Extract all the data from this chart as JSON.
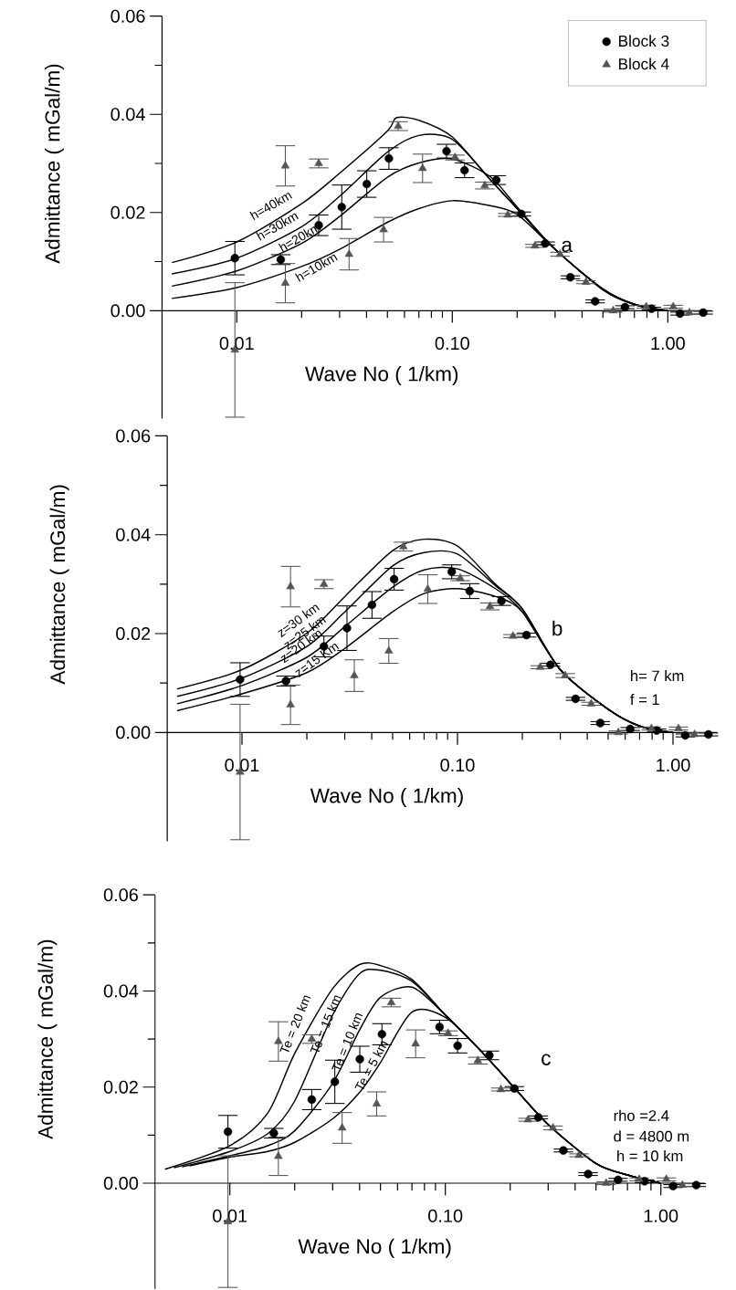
{
  "chart_data": [
    {
      "type": "scatter",
      "xlabel": "Wave No ( 1/km)",
      "ylabel": "Admittance ( mGal/m)",
      "log": "x",
      "legend": "top right",
      "xlim": [
        0.0045,
        1.6
      ],
      "ylim": [
        -0.022,
        0.06
      ],
      "xticks": [
        {
          "value": 0.01,
          "label": "0.01"
        },
        {
          "value": 0.02,
          "label": null
        },
        {
          "value": 0.03,
          "label": null
        },
        {
          "value": 0.04,
          "label": null
        },
        {
          "value": 0.05,
          "label": null
        },
        {
          "value": 0.06,
          "label": null
        },
        {
          "value": 0.07,
          "label": null
        },
        {
          "value": 0.08,
          "label": null
        },
        {
          "value": 0.09,
          "label": null
        },
        {
          "value": 0.1,
          "label": "0.10"
        },
        {
          "value": 0.2,
          "label": null
        },
        {
          "value": 0.3,
          "label": null
        },
        {
          "value": 0.4,
          "label": null
        },
        {
          "value": 0.5,
          "label": null
        },
        {
          "value": 0.6,
          "label": null
        },
        {
          "value": 0.7,
          "label": null
        },
        {
          "value": 0.8,
          "label": null
        },
        {
          "value": 0.9,
          "label": null
        },
        {
          "value": 1,
          "label": "1.00"
        }
      ],
      "yticks": [
        {
          "value": 0,
          "label": "0.00"
        },
        {
          "value": 0.01,
          "label": null
        },
        {
          "value": 0.02,
          "label": "0.02"
        },
        {
          "value": 0.03,
          "label": null
        },
        {
          "value": 0.04,
          "label": "0.04"
        },
        {
          "value": 0.05,
          "label": null
        },
        {
          "value": 0.06,
          "label": "0.06"
        }
      ],
      "annotations": [
        "a",
        "h=40km",
        "h=30km",
        "h=20km",
        "h=10km"
      ],
      "series": [
        {
          "type": "line",
          "marker": "none",
          "color": "#000000",
          "x": [
            0.005,
            0.01,
            0.02,
            0.03,
            0.05,
            0.055,
            0.07,
            0.1,
            0.15,
            0.2,
            0.3,
            0.5,
            0.7,
            1.0
          ],
          "values": [
            0.0098,
            0.014,
            0.0218,
            0.028,
            0.0366,
            0.0393,
            0.0388,
            0.0354,
            0.0267,
            0.0208,
            0.0125,
            0.0044,
            0.0013,
            0.0
          ]
        },
        {
          "type": "line",
          "marker": "none",
          "color": "#000000",
          "x": [
            0.005,
            0.01,
            0.02,
            0.03,
            0.05,
            0.07,
            0.1,
            0.15,
            0.2,
            0.3,
            0.5,
            0.7,
            1.0
          ],
          "values": [
            0.0075,
            0.0107,
            0.0171,
            0.0233,
            0.0323,
            0.0357,
            0.0349,
            0.0267,
            0.0208,
            0.0125,
            0.0044,
            0.0013,
            0.0
          ]
        },
        {
          "type": "line",
          "marker": "none",
          "color": "#000000",
          "x": [
            0.005,
            0.01,
            0.02,
            0.03,
            0.05,
            0.07,
            0.1,
            0.15,
            0.2,
            0.3,
            0.5,
            0.7,
            1.0
          ],
          "values": [
            0.005,
            0.0081,
            0.0137,
            0.0192,
            0.0272,
            0.0301,
            0.0309,
            0.0273,
            0.0211,
            0.0125,
            0.0044,
            0.0013,
            0.0
          ]
        },
        {
          "type": "line",
          "marker": "none",
          "color": "#000000",
          "x": [
            0.005,
            0.01,
            0.02,
            0.03,
            0.05,
            0.07,
            0.1,
            0.15,
            0.2,
            0.3,
            0.5,
            0.7,
            1.0
          ],
          "values": [
            0.0025,
            0.0047,
            0.009,
            0.0125,
            0.018,
            0.0208,
            0.0224,
            0.0214,
            0.0196,
            0.0125,
            0.0042,
            0.0012,
            0.0
          ]
        },
        {
          "name": "Block 3",
          "marker": "circle",
          "color": "#000000",
          "x": [
            0.0098,
            0.016,
            0.024,
            0.0307,
            0.0401,
            0.0508,
            0.094,
            0.114,
            0.16,
            0.209,
            0.27,
            0.353,
            0.46,
            0.633,
            0.84,
            1.14,
            1.46
          ],
          "values": [
            0.0107,
            0.0104,
            0.0174,
            0.0211,
            0.0258,
            0.031,
            0.0325,
            0.0286,
            0.0266,
            0.0197,
            0.0137,
            0.0068,
            0.0019,
            0.0007,
            0.0004,
            -0.0006,
            -0.0004
          ],
          "errors": [
            0.0034,
            0.001,
            0.0021,
            0.0045,
            0.0027,
            0.0022,
            0.0014,
            0.0015,
            0.0009,
            0.0004,
            0.0003,
            0.0003,
            0.0003,
            0.0003,
            0.0003,
            0.0003,
            0.0003
          ]
        },
        {
          "name": "Block 4",
          "marker": "triangle",
          "color": "#555555",
          "x": [
            0.0098,
            0.0168,
            0.0168,
            0.024,
            0.0332,
            0.048,
            0.0561,
            0.0728,
            0.103,
            0.1415,
            0.181,
            0.242,
            0.316,
            0.417,
            0.558,
            0.794,
            1.06,
            1.26
          ],
          "values": [
            -0.008,
            0.0056,
            0.0295,
            0.03,
            0.0115,
            0.0165,
            0.0376,
            0.029,
            0.0312,
            0.0255,
            0.0195,
            0.0132,
            0.0115,
            0.0058,
            0.0,
            0.0008,
            0.0008,
            -0.0004
          ],
          "errors": [
            0.0137,
            0.004,
            0.0041,
            0.0009,
            0.0032,
            0.0025,
            0.0009,
            0.0029,
            0.0005,
            0.0007,
            0.0003,
            0.0003,
            0.0004,
            0.0003,
            0.0003,
            0.0003,
            0.0003,
            0.0003
          ]
        }
      ]
    },
    {
      "type": "scatter",
      "xlabel": "Wave No ( 1/km)",
      "ylabel": "Admittance ( mGal/m)",
      "log": "x",
      "xlim": [
        0.0045,
        1.6
      ],
      "ylim": [
        -0.022,
        0.06
      ],
      "xticks": [
        {
          "value": 0.01,
          "label": "0.01"
        },
        {
          "value": 0.02,
          "label": null
        },
        {
          "value": 0.03,
          "label": null
        },
        {
          "value": 0.04,
          "label": null
        },
        {
          "value": 0.05,
          "label": null
        },
        {
          "value": 0.06,
          "label": null
        },
        {
          "value": 0.07,
          "label": null
        },
        {
          "value": 0.08,
          "label": null
        },
        {
          "value": 0.09,
          "label": null
        },
        {
          "value": 0.1,
          "label": "0.10"
        },
        {
          "value": 0.2,
          "label": null
        },
        {
          "value": 0.3,
          "label": null
        },
        {
          "value": 0.4,
          "label": null
        },
        {
          "value": 0.5,
          "label": null
        },
        {
          "value": 0.6,
          "label": null
        },
        {
          "value": 0.7,
          "label": null
        },
        {
          "value": 0.8,
          "label": null
        },
        {
          "value": 0.9,
          "label": null
        },
        {
          "value": 1,
          "label": "1.00"
        }
      ],
      "yticks": [
        {
          "value": 0,
          "label": "0.00"
        },
        {
          "value": 0.01,
          "label": null
        },
        {
          "value": 0.02,
          "label": "0.02"
        },
        {
          "value": 0.03,
          "label": null
        },
        {
          "value": 0.04,
          "label": "0.04"
        },
        {
          "value": 0.05,
          "label": null
        },
        {
          "value": 0.06,
          "label": "0.06"
        }
      ],
      "annotations": [
        "b",
        "h= 7 km",
        "f = 1",
        "z=30 km",
        "z=25 km",
        "z=20 km",
        "z=15 Km"
      ],
      "series": [
        {
          "type": "line",
          "marker": "none",
          "color": "#000000",
          "x": [
            0.005,
            0.01,
            0.02,
            0.03,
            0.05,
            0.07,
            0.1,
            0.15,
            0.2,
            0.3,
            0.5,
            0.7,
            1.0
          ],
          "values": [
            0.0088,
            0.0127,
            0.0201,
            0.0275,
            0.0368,
            0.0391,
            0.0377,
            0.03,
            0.025,
            0.0127,
            0.0047,
            0.0013,
            0.0
          ]
        },
        {
          "type": "line",
          "marker": "none",
          "color": "#000000",
          "x": [
            0.005,
            0.01,
            0.02,
            0.03,
            0.05,
            0.07,
            0.1,
            0.15,
            0.2,
            0.3,
            0.5,
            0.7,
            1.0
          ],
          "values": [
            0.0073,
            0.011,
            0.0174,
            0.0244,
            0.0337,
            0.0364,
            0.0361,
            0.0297,
            0.025,
            0.0127,
            0.0047,
            0.0013,
            0.0
          ]
        },
        {
          "type": "line",
          "marker": "none",
          "color": "#000000",
          "x": [
            0.005,
            0.01,
            0.02,
            0.03,
            0.05,
            0.07,
            0.1,
            0.15,
            0.2,
            0.3,
            0.5,
            0.7,
            1.0
          ],
          "values": [
            0.0058,
            0.0095,
            0.0152,
            0.0214,
            0.0294,
            0.0329,
            0.0331,
            0.0291,
            0.0244,
            0.0127,
            0.0047,
            0.0013,
            0.0
          ]
        },
        {
          "type": "line",
          "marker": "none",
          "color": "#000000",
          "x": [
            0.005,
            0.01,
            0.02,
            0.03,
            0.05,
            0.07,
            0.1,
            0.15,
            0.2,
            0.3,
            0.5,
            0.7,
            1.0
          ],
          "values": [
            0.0044,
            0.0078,
            0.0121,
            0.017,
            0.0244,
            0.0281,
            0.0291,
            0.0275,
            0.0244,
            0.0127,
            0.0047,
            0.0013,
            0.0
          ]
        },
        {
          "marker": "circle",
          "color": "#000000",
          "x": [
            0.0098,
            0.016,
            0.024,
            0.0307,
            0.0401,
            0.0508,
            0.094,
            0.114,
            0.16,
            0.209,
            0.27,
            0.353,
            0.46,
            0.633,
            0.84,
            1.14,
            1.46
          ],
          "values": [
            0.0107,
            0.0104,
            0.0174,
            0.0211,
            0.0258,
            0.031,
            0.0325,
            0.0286,
            0.0266,
            0.0197,
            0.0137,
            0.0068,
            0.0019,
            0.0007,
            0.0004,
            -0.0006,
            -0.0004
          ],
          "errors": [
            0.0034,
            0.001,
            0.0021,
            0.0045,
            0.0027,
            0.0022,
            0.0014,
            0.0015,
            0.0009,
            0.0004,
            0.0003,
            0.0003,
            0.0003,
            0.0003,
            0.0003,
            0.0003,
            0.0003
          ]
        },
        {
          "marker": "triangle",
          "color": "#555555",
          "x": [
            0.0098,
            0.0168,
            0.0168,
            0.024,
            0.0332,
            0.048,
            0.0561,
            0.0728,
            0.103,
            0.1415,
            0.181,
            0.242,
            0.316,
            0.417,
            0.558,
            0.794,
            1.06,
            1.26
          ],
          "values": [
            -0.008,
            0.0056,
            0.0295,
            0.03,
            0.0115,
            0.0165,
            0.0376,
            0.029,
            0.0312,
            0.0255,
            0.0195,
            0.0132,
            0.0115,
            0.0058,
            0.0,
            0.0008,
            0.0008,
            -0.0004
          ],
          "errors": [
            0.0137,
            0.004,
            0.0041,
            0.0009,
            0.0032,
            0.0025,
            0.0009,
            0.0029,
            0.0005,
            0.0007,
            0.0003,
            0.0003,
            0.0004,
            0.0003,
            0.0003,
            0.0003,
            0.0003,
            0.0003
          ]
        }
      ]
    },
    {
      "type": "scatter",
      "xlabel": "Wave No ( 1/km)",
      "ylabel": "Admittance ( mGal/m)",
      "log": "x",
      "xlim": [
        0.0045,
        1.6
      ],
      "ylim": [
        -0.022,
        0.06
      ],
      "xticks": [
        {
          "value": 0.01,
          "label": "0.01"
        },
        {
          "value": 0.02,
          "label": null
        },
        {
          "value": 0.03,
          "label": null
        },
        {
          "value": 0.04,
          "label": null
        },
        {
          "value": 0.05,
          "label": null
        },
        {
          "value": 0.06,
          "label": null
        },
        {
          "value": 0.07,
          "label": null
        },
        {
          "value": 0.08,
          "label": null
        },
        {
          "value": 0.09,
          "label": null
        },
        {
          "value": 0.1,
          "label": "0.10"
        },
        {
          "value": 0.2,
          "label": null
        },
        {
          "value": 0.3,
          "label": null
        },
        {
          "value": 0.4,
          "label": null
        },
        {
          "value": 0.5,
          "label": null
        },
        {
          "value": 0.6,
          "label": null
        },
        {
          "value": 0.7,
          "label": null
        },
        {
          "value": 0.8,
          "label": null
        },
        {
          "value": 0.9,
          "label": null
        },
        {
          "value": 1,
          "label": "1.00"
        }
      ],
      "yticks": [
        {
          "value": 0,
          "label": "0.00"
        },
        {
          "value": 0.01,
          "label": null
        },
        {
          "value": 0.02,
          "label": "0.02"
        },
        {
          "value": 0.03,
          "label": null
        },
        {
          "value": 0.04,
          "label": "0.04"
        },
        {
          "value": 0.05,
          "label": null
        },
        {
          "value": 0.06,
          "label": "0.06"
        }
      ],
      "annotations": [
        "c",
        "rho =2.4",
        "d = 4800 m",
        "h = 10 km",
        "Te = 20 km",
        "Te = 15 km",
        "Te = 10 km",
        "Te = 5 km"
      ],
      "series": [
        {
          "type": "line",
          "marker": "none",
          "color": "#000000",
          "x": [
            0.005,
            0.01,
            0.015,
            0.02,
            0.03,
            0.04,
            0.05,
            0.07,
            0.1,
            0.15,
            0.2,
            0.3,
            0.5,
            0.7,
            1.0
          ],
          "values": [
            0.0029,
            0.0078,
            0.0146,
            0.027,
            0.0405,
            0.0455,
            0.0453,
            0.0424,
            0.035,
            0.027,
            0.0208,
            0.0122,
            0.0041,
            0.0017,
            0.0
          ]
        },
        {
          "type": "line",
          "marker": "none",
          "color": "#000000",
          "x": [
            0.0055,
            0.01,
            0.015,
            0.02,
            0.03,
            0.04,
            0.05,
            0.07,
            0.1,
            0.15,
            0.2,
            0.3,
            0.5,
            0.7,
            1.0
          ],
          "values": [
            0.0032,
            0.0066,
            0.0103,
            0.0171,
            0.035,
            0.0436,
            0.0443,
            0.042,
            0.035,
            0.027,
            0.0208,
            0.0122,
            0.0041,
            0.0017,
            0.0
          ]
        },
        {
          "type": "line",
          "marker": "none",
          "color": "#000000",
          "x": [
            0.006,
            0.01,
            0.015,
            0.02,
            0.03,
            0.04,
            0.05,
            0.07,
            0.1,
            0.15,
            0.2,
            0.3,
            0.5,
            0.7,
            1.0
          ],
          "values": [
            0.0034,
            0.0057,
            0.0078,
            0.0109,
            0.0208,
            0.0319,
            0.0387,
            0.0408,
            0.035,
            0.027,
            0.0208,
            0.0122,
            0.0041,
            0.0017,
            0.0
          ]
        },
        {
          "type": "line",
          "marker": "none",
          "color": "#000000",
          "x": [
            0.0065,
            0.01,
            0.015,
            0.02,
            0.03,
            0.04,
            0.05,
            0.07,
            0.1,
            0.15,
            0.2,
            0.3,
            0.5,
            0.7,
            1.0
          ],
          "values": [
            0.0036,
            0.0054,
            0.0066,
            0.0085,
            0.0134,
            0.0189,
            0.0251,
            0.0356,
            0.0345,
            0.027,
            0.0208,
            0.0122,
            0.0041,
            0.0017,
            0.0
          ]
        },
        {
          "marker": "circle",
          "color": "#000000",
          "x": [
            0.0098,
            0.016,
            0.024,
            0.0307,
            0.0401,
            0.0508,
            0.094,
            0.114,
            0.16,
            0.209,
            0.27,
            0.353,
            0.46,
            0.633,
            0.84,
            1.14,
            1.46
          ],
          "values": [
            0.0107,
            0.0104,
            0.0174,
            0.0211,
            0.0258,
            0.031,
            0.0325,
            0.0286,
            0.0266,
            0.0197,
            0.0137,
            0.0068,
            0.0019,
            0.0007,
            0.0004,
            -0.0006,
            -0.0004
          ],
          "errors": [
            0.0034,
            0.001,
            0.0021,
            0.0045,
            0.0027,
            0.0022,
            0.0014,
            0.0015,
            0.0009,
            0.0004,
            0.0003,
            0.0003,
            0.0003,
            0.0003,
            0.0003,
            0.0003,
            0.0003
          ]
        },
        {
          "marker": "triangle",
          "color": "#555555",
          "x": [
            0.0098,
            0.0168,
            0.0168,
            0.024,
            0.0332,
            0.048,
            0.0561,
            0.0728,
            0.103,
            0.1415,
            0.181,
            0.242,
            0.316,
            0.417,
            0.558,
            0.794,
            1.06,
            1.26
          ],
          "values": [
            -0.008,
            0.0056,
            0.0295,
            0.03,
            0.0115,
            0.0165,
            0.0376,
            0.029,
            0.0312,
            0.0255,
            0.0195,
            0.0132,
            0.0115,
            0.0058,
            0.0,
            0.0008,
            0.0008,
            -0.0004
          ],
          "errors": [
            0.0137,
            0.004,
            0.0041,
            0.0009,
            0.0032,
            0.0025,
            0.0009,
            0.0029,
            0.0005,
            0.0007,
            0.0003,
            0.0003,
            0.0004,
            0.0003,
            0.0003,
            0.0003,
            0.0003,
            0.0003
          ]
        }
      ]
    }
  ]
}
